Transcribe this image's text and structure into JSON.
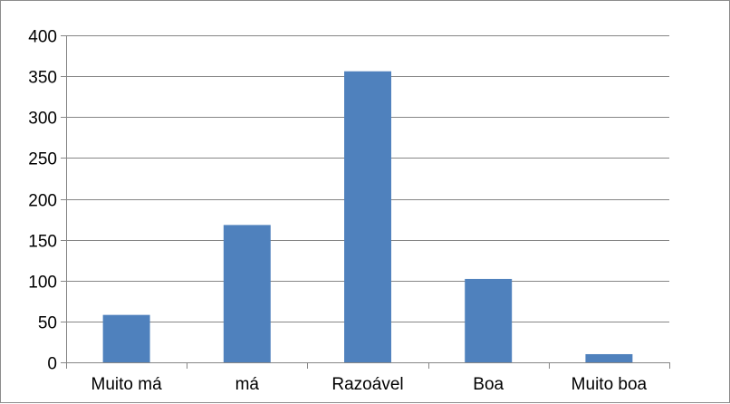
{
  "chart_data": {
    "type": "bar",
    "categories": [
      "Muito má",
      "má",
      "Razoável",
      "Boa",
      "Muito boa"
    ],
    "values": [
      58,
      168,
      356,
      102,
      10
    ],
    "ylim": [
      0,
      400
    ],
    "yticks": [
      0,
      50,
      100,
      150,
      200,
      250,
      300,
      350,
      400
    ],
    "grid": true,
    "legend": "none",
    "bar_color": "#4f81bd",
    "grid_color": "#868686",
    "axis_color": "#868686"
  }
}
